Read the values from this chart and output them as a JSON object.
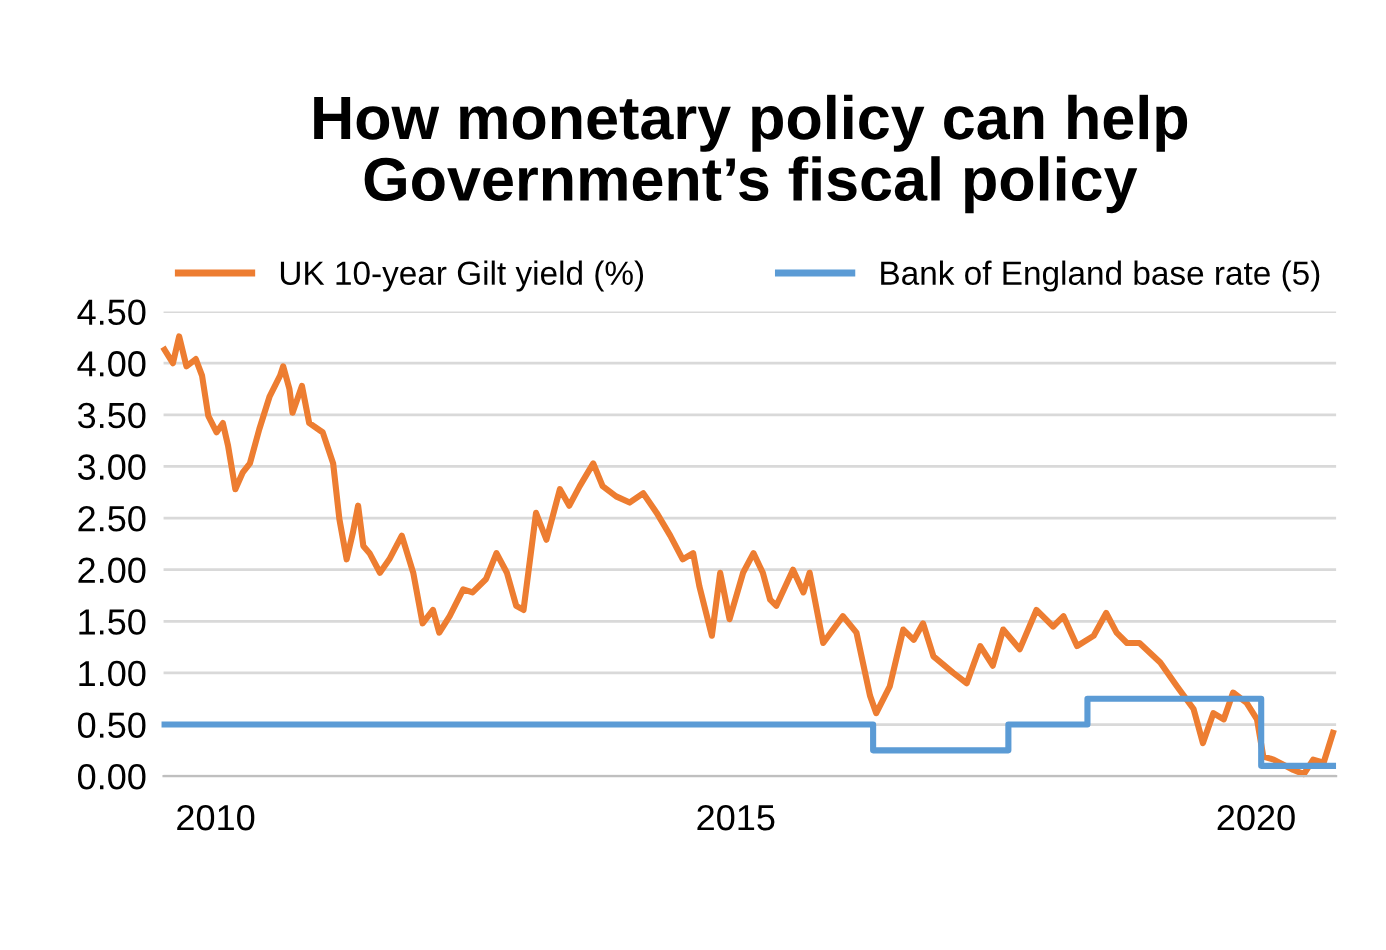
{
  "chart_data": {
    "type": "line",
    "title": "How monetary policy can help\nGovernment’s fiscal policy",
    "xlim": [
      2009.5,
      2020.77
    ],
    "xticks": [
      2010,
      2015,
      2020
    ],
    "ylim": [
      0,
      4.5
    ],
    "yticks": [
      {
        "value": 0,
        "label": "0.00"
      },
      {
        "value": 0.5,
        "label": "0.50"
      },
      {
        "value": 1,
        "label": "1.00"
      },
      {
        "value": 1.5,
        "label": "1.50"
      },
      {
        "value": 2,
        "label": "2.00"
      },
      {
        "value": 2.5,
        "label": "2.50"
      },
      {
        "value": 3,
        "label": "3.00"
      },
      {
        "value": 3.5,
        "label": "3.50"
      },
      {
        "value": 4,
        "label": "4.00"
      },
      {
        "value": 4.5,
        "label": "4.50"
      }
    ],
    "grid": "y",
    "legend": "top",
    "series": [
      {
        "name": "UK 10-year Gilt yield (%)",
        "color": "#ed7d31",
        "x": [
          2009.51,
          2009.59,
          2009.65,
          2009.72,
          2009.81,
          2009.87,
          2009.93,
          2010.01,
          2010.07,
          2010.12,
          2010.19,
          2010.26,
          2010.33,
          2010.42,
          2010.52,
          2010.62,
          2010.65,
          2010.71,
          2010.74,
          2010.83,
          2010.9,
          2011.03,
          2011.13,
          2011.19,
          2011.26,
          2011.32,
          2011.37,
          2011.42,
          2011.48,
          2011.58,
          2011.67,
          2011.79,
          2011.9,
          2011.99,
          2012.09,
          2012.15,
          2012.25,
          2012.38,
          2012.47,
          2012.6,
          2012.7,
          2012.8,
          2012.89,
          2012.96,
          2013.08,
          2013.18,
          2013.31,
          2013.4,
          2013.5,
          2013.63,
          2013.72,
          2013.85,
          2013.98,
          2014.11,
          2014.24,
          2014.37,
          2014.49,
          2014.59,
          2014.65,
          2014.77,
          2014.85,
          2014.94,
          2015.07,
          2015.17,
          2015.26,
          2015.33,
          2015.39,
          2015.55,
          2015.65,
          2015.71,
          2015.84,
          2016.03,
          2016.16,
          2016.29,
          2016.35,
          2016.48,
          2016.61,
          2016.71,
          2016.8,
          2016.9,
          2017.09,
          2017.22,
          2017.35,
          2017.47,
          2017.57,
          2017.73,
          2017.89,
          2018.05,
          2018.15,
          2018.28,
          2018.44,
          2018.56,
          2018.66,
          2018.76,
          2018.88,
          2019.08,
          2019.24,
          2019.4,
          2019.49,
          2019.59,
          2019.69,
          2019.78,
          2019.91,
          2020.01,
          2020.07,
          2020.17,
          2020.36,
          2020.46,
          2020.55,
          2020.65,
          2020.74
        ],
        "values": [
          4.13,
          4.0,
          4.26,
          3.97,
          4.04,
          3.88,
          3.49,
          3.33,
          3.42,
          3.2,
          2.78,
          2.94,
          3.03,
          3.36,
          3.68,
          3.88,
          3.97,
          3.75,
          3.52,
          3.78,
          3.42,
          3.33,
          3.03,
          2.49,
          2.1,
          2.36,
          2.62,
          2.23,
          2.16,
          1.97,
          2.1,
          2.33,
          1.97,
          1.48,
          1.61,
          1.39,
          1.55,
          1.81,
          1.78,
          1.91,
          2.16,
          1.97,
          1.65,
          1.61,
          2.55,
          2.29,
          2.78,
          2.62,
          2.81,
          3.03,
          2.81,
          2.71,
          2.65,
          2.74,
          2.55,
          2.33,
          2.1,
          2.16,
          1.84,
          1.36,
          1.97,
          1.52,
          1.97,
          2.16,
          1.97,
          1.71,
          1.65,
          2.0,
          1.78,
          1.97,
          1.29,
          1.55,
          1.39,
          0.78,
          0.61,
          0.87,
          1.42,
          1.32,
          1.48,
          1.16,
          1.0,
          0.9,
          1.26,
          1.07,
          1.42,
          1.23,
          1.61,
          1.45,
          1.55,
          1.26,
          1.36,
          1.58,
          1.39,
          1.29,
          1.29,
          1.1,
          0.87,
          0.65,
          0.32,
          0.61,
          0.55,
          0.81,
          0.71,
          0.55,
          0.19,
          0.16,
          0.06,
          0.02,
          0.16,
          0.13,
          0.42
        ]
      },
      {
        "name": "Bank of England base rate (5)",
        "color": "#5b9bd5",
        "type": "step",
        "x": [
          2009.51,
          2016.32,
          2017.62,
          2018.38,
          2020.05,
          2020.74
        ],
        "values": [
          0.5,
          0.25,
          0.5,
          0.75,
          0.1,
          0.1
        ]
      }
    ]
  }
}
